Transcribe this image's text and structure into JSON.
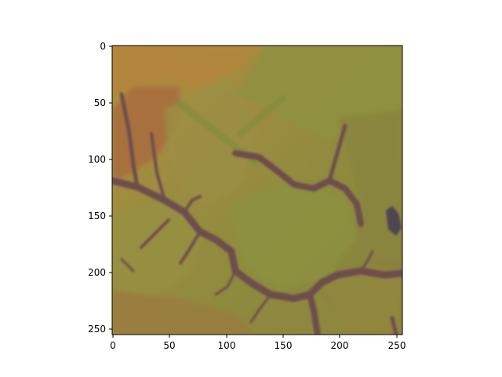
{
  "figure": {
    "image_description_tag": "satellite-terrain-image",
    "axes": {
      "x_ticks": [
        "0",
        "50",
        "100",
        "150",
        "200",
        "250"
      ],
      "y_ticks": [
        "0",
        "50",
        "100",
        "150",
        "200",
        "250"
      ]
    },
    "colors": {
      "olive_green": "#8f8e3c",
      "ochre": "#b07c3e",
      "dry_brown": "#a8693f",
      "river_purple": "#6e4e4e",
      "dark_pond": "#4a3f52"
    }
  }
}
